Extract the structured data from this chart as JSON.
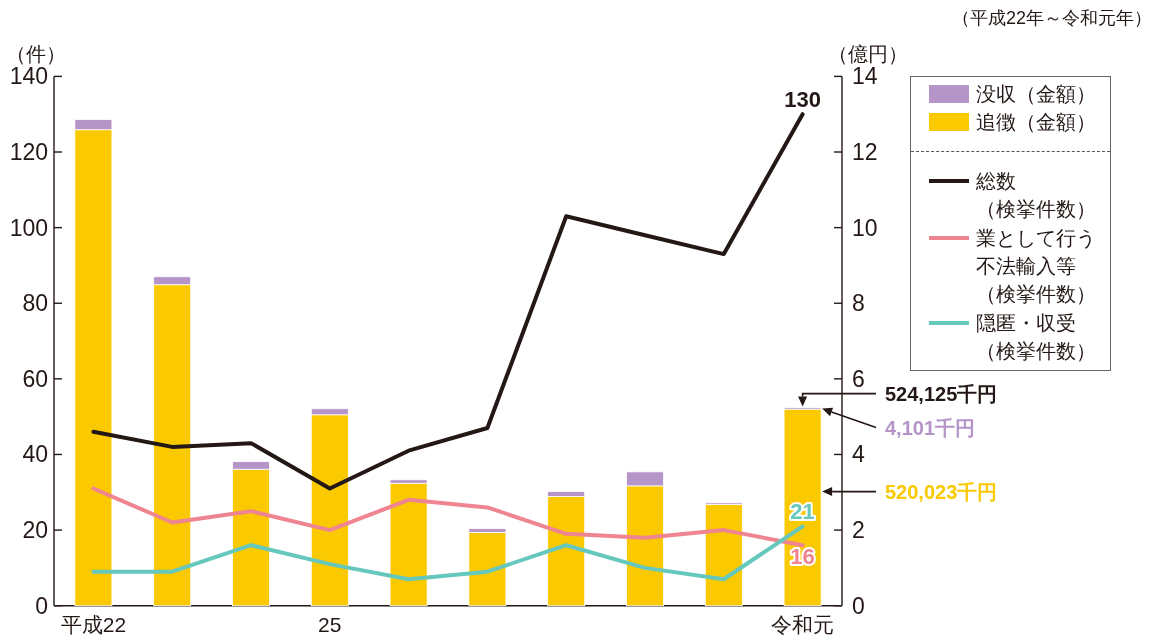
{
  "chart_data": {
    "type": "bar",
    "subtitle": "（平成22年～令和元年）",
    "ylabel": "（件）",
    "y2label": "（億円）",
    "categories": [
      "平成22",
      null,
      null,
      "25",
      null,
      null,
      null,
      null,
      null,
      "令和元"
    ],
    "stacked": true,
    "series": [
      {
        "name": "追徴（金額）",
        "type": "bar",
        "axis": "y2",
        "color": "#fbc900",
        "values": [
          12.59,
          8.49,
          3.61,
          5.05,
          3.24,
          1.94,
          2.89,
          3.17,
          2.68,
          5.2
        ]
      },
      {
        "name": "没収（金額）",
        "type": "bar",
        "axis": "y2",
        "color": "#b594c8",
        "values": [
          0.27,
          0.21,
          0.2,
          0.16,
          0.09,
          0.1,
          0.13,
          0.37,
          0.04,
          0.04
        ]
      },
      {
        "name": "総数（検挙件数）",
        "type": "line",
        "color": "#231815",
        "values": [
          46,
          42,
          43,
          31,
          41,
          47,
          103,
          98,
          93,
          130
        ],
        "value_labels": [
          null,
          null,
          null,
          null,
          null,
          null,
          null,
          null,
          null,
          "130"
        ]
      },
      {
        "name": "業として行う不法輸入等（検挙件数）",
        "type": "line",
        "color": "#ee8590",
        "values": [
          31,
          22,
          25,
          20,
          28,
          26,
          19,
          18,
          20,
          16
        ],
        "value_labels": [
          null,
          null,
          null,
          null,
          null,
          null,
          null,
          null,
          null,
          "16"
        ]
      },
      {
        "name": "隠匿・収受（検挙件数）",
        "type": "line",
        "color": "#66c8bc",
        "values": [
          9,
          9,
          16,
          11,
          7,
          9,
          16,
          10,
          7,
          21
        ],
        "value_labels": [
          null,
          null,
          null,
          null,
          null,
          null,
          null,
          null,
          null,
          "21"
        ]
      }
    ],
    "annotations": [
      "524,125千円",
      "4,101千円",
      "520,023千円"
    ],
    "ylim": [
      0,
      140
    ],
    "yticks": [
      0,
      20,
      40,
      60,
      80,
      100,
      120,
      140
    ],
    "y2lim": [
      0,
      14
    ],
    "y2ticks": [
      0,
      2,
      4,
      6,
      8,
      10,
      12,
      14
    ],
    "legend": "right"
  }
}
